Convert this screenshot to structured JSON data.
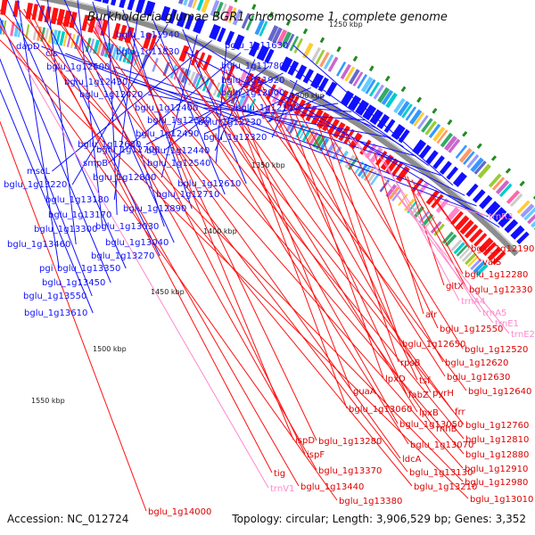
{
  "title": "Burkholderia glumae BGR1 chromosome 1, complete genome",
  "accession": "Accession: NC_012724",
  "topology": "Topology: circular; Length: 3,906,529 bp; Genes: 3,352",
  "colors": {
    "forward_gene": "#1010ff",
    "reverse_gene": "#ff1010",
    "rna_gene": "#ff88cc",
    "backbone": "#8c8c8c",
    "scale_tick": "#228b22"
  },
  "scale_labels": [
    "1250 kbp",
    "1300 kbp",
    "1350 kbp",
    "1400 kbp",
    "1450 kbp",
    "1500 kbp",
    "1550 kbp"
  ],
  "left_labels": [
    "bglu_1g11940",
    "dapD",
    "cls",
    "bglu_1g11830",
    "bglu_1g11630",
    "bglu_1g12500",
    "bglu_1g11780",
    "bglu_1g12430",
    "bglu_1g11920",
    "bglu_1g12420",
    "bglu_1g12000",
    "bglu_1g12400",
    "bglu_1g12140",
    "bglu_1g12380",
    "bglu_1g12230",
    "bglu_1g12490",
    "bglu_1g12320",
    "bglu_1g12680",
    "bglu_1g12700",
    "bglu_1g12440",
    "smpB",
    "bglu_1g12540",
    "mscL",
    "bglu_1g12800",
    "bglu_1g12610",
    "bglu_1g13220",
    "bglu_1g12710",
    "bglu_1g13180",
    "bglu_1g12890",
    "bglu_1g13170",
    "bglu_1g13030",
    "bglu_1g13300",
    "bglu_1g13040",
    "bglu_1g13460",
    "bglu_1g13270",
    "pgi",
    "bglu_1g13350",
    "bglu_1g13450",
    "bglu_1g13550",
    "bglu_1g13610"
  ],
  "right_labels": [
    "trnR3",
    "bglu_1g12190",
    "valS",
    "bglu_1g12280",
    "gltX",
    "bglu_1g12330",
    "trnA4",
    "trnA5",
    "alr",
    "trnE1",
    "trnE2",
    "bglu_1g12550",
    "bglu_1g12650",
    "bglu_1g12520",
    "rpsB",
    "bglu_1g12620",
    "tsf",
    "lpxD",
    "fabZ",
    "bglu_1g12630",
    "pyrH",
    "bglu_1g12640",
    "guaA",
    "bglu_1g13060",
    "lpxB",
    "frr",
    "bglu_1g13050",
    "rnhB",
    "bglu_1g12760",
    "bglu_1g13070",
    "bglu_1g12810",
    "ispD",
    "bglu_1g13280",
    "bglu_1g12880",
    "ispF",
    "ldcA",
    "bglu_1g12910",
    "bglu_1g13370",
    "bglu_1g13130",
    "tig",
    "bglu_1g13440",
    "bglu_1g13210",
    "bglu_1g12980",
    "trnV1",
    "bglu_1g13380",
    "bglu_1g13010",
    "bglu_1g14000"
  ]
}
